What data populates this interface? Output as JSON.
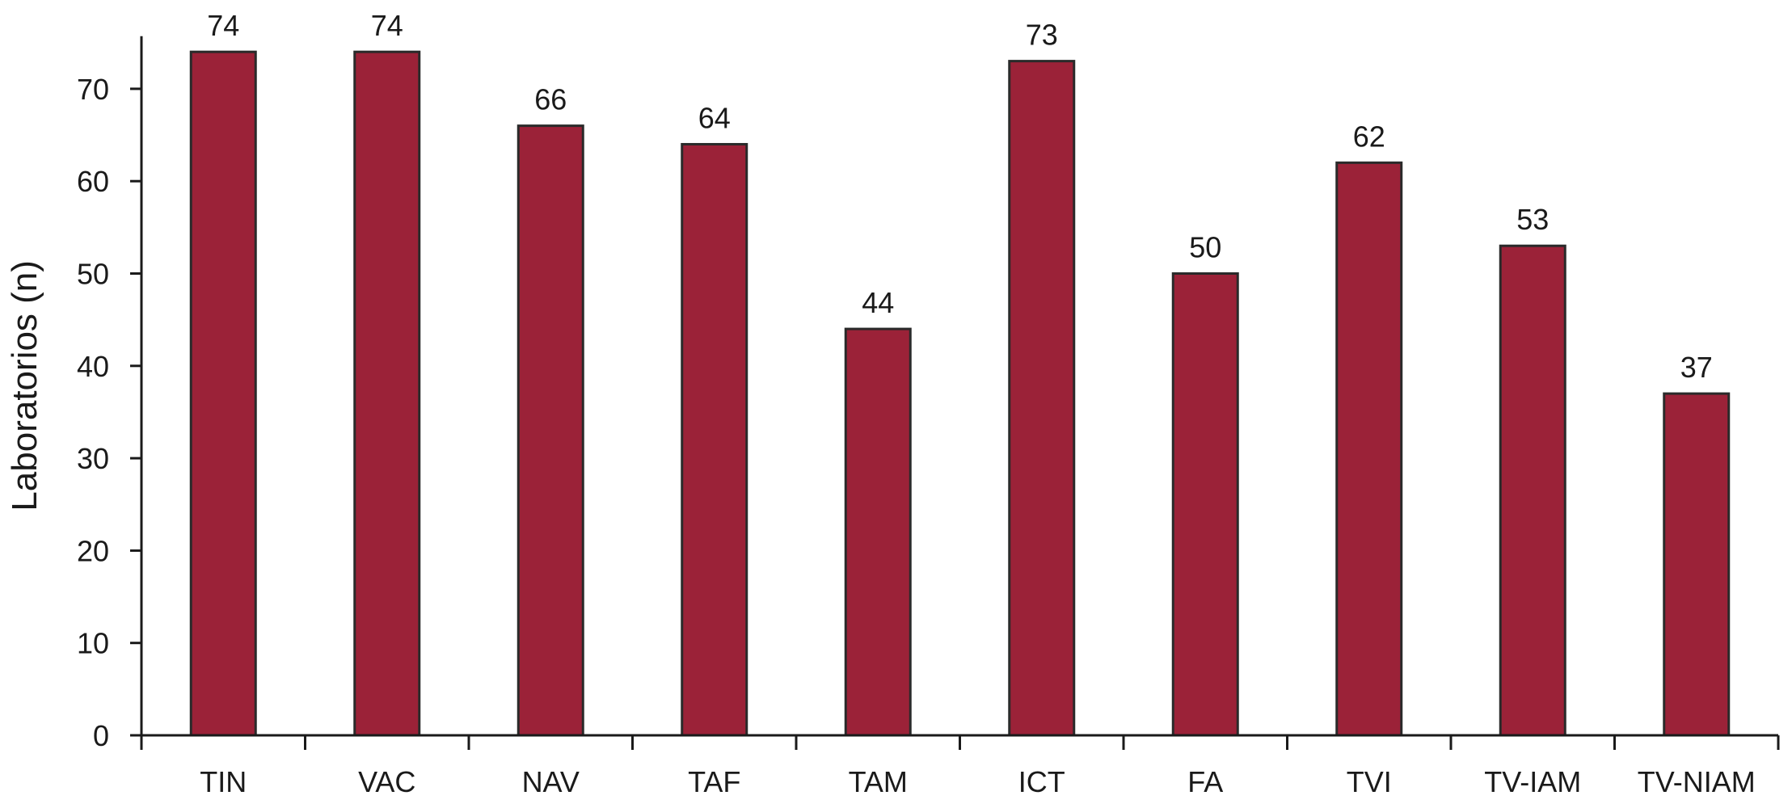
{
  "chart_data": {
    "type": "bar",
    "title": "",
    "xlabel": "",
    "ylabel": "Laboratorios (n)",
    "categories": [
      "TIN",
      "VAC",
      "NAV",
      "TAF",
      "TAM",
      "ICT",
      "FA",
      "TVI",
      "TV-IAM",
      "TV-NIAM"
    ],
    "values": [
      74,
      74,
      66,
      64,
      44,
      73,
      50,
      62,
      53,
      37
    ],
    "data_labels": [
      "74",
      "74",
      "66",
      "64",
      "44",
      "73",
      "50",
      "62",
      "53",
      "37"
    ],
    "ylim": [
      0,
      75
    ],
    "yticks": [
      0,
      10,
      20,
      30,
      40,
      50,
      60,
      70
    ],
    "ytick_labels": [
      "0",
      "10",
      "20",
      "30",
      "40",
      "50",
      "60",
      "70"
    ],
    "grid": false,
    "legend": "none",
    "colors": {
      "bar_fill": "#9b2238",
      "bar_stroke": "#2a2a2a",
      "axis": "#1a1a1a",
      "text": "#1a1a1a"
    }
  }
}
